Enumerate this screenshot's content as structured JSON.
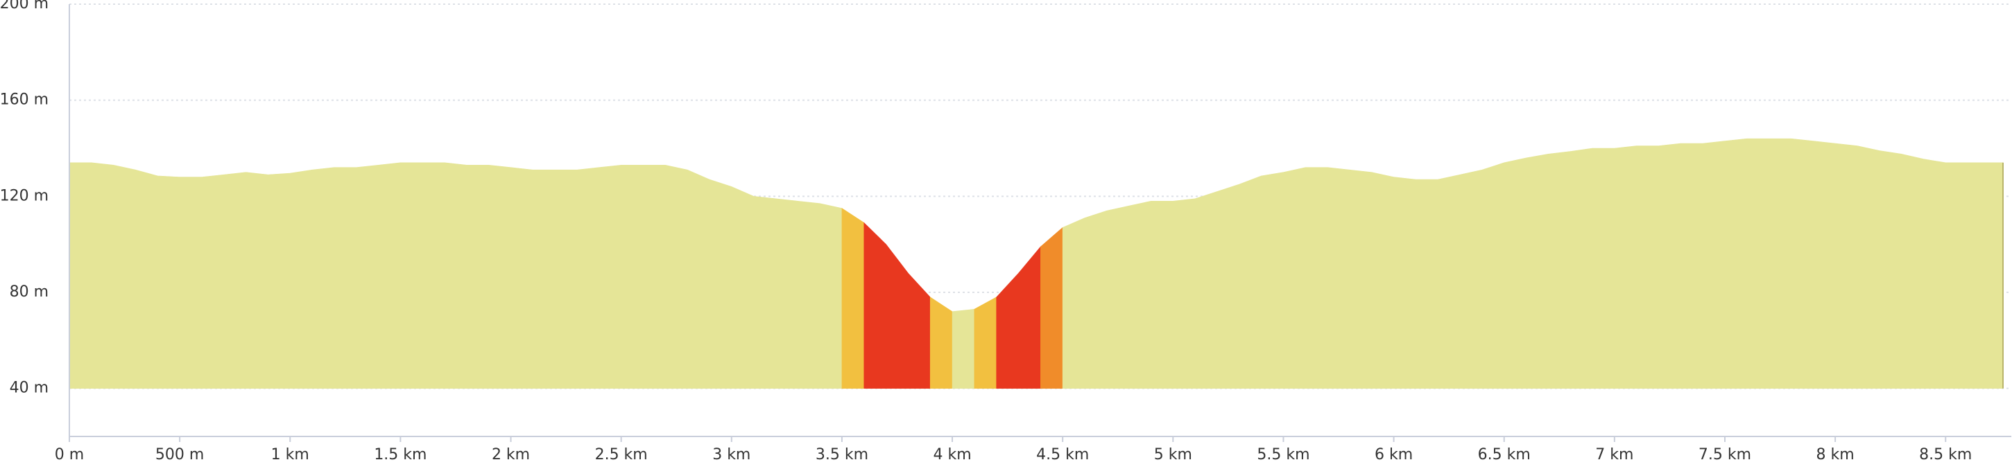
{
  "chart_data": {
    "type": "area",
    "series": [
      {
        "color": "#e5e597",
        "x": [
          0,
          100,
          200,
          300,
          400,
          500,
          600,
          700,
          800,
          900,
          1000,
          1100,
          1200,
          1300,
          1400,
          1500,
          1600,
          1700,
          1800,
          1900,
          2000,
          2100,
          2200,
          2300,
          2400,
          2500,
          2600,
          2700,
          2800,
          2900,
          3000,
          3100,
          3200,
          3300,
          3400,
          3500
        ],
        "values": [
          134,
          134,
          133,
          131,
          128.5,
          128,
          128,
          129,
          130,
          129,
          129.6,
          131,
          132,
          132,
          133,
          134,
          134,
          134,
          133,
          133,
          132,
          131,
          131,
          131,
          132,
          133,
          133,
          133,
          131,
          127,
          124,
          120,
          119,
          118,
          117,
          115
        ]
      },
      {
        "color": "#f2c040",
        "x": [
          3500,
          3600
        ],
        "values": [
          115,
          109
        ]
      },
      {
        "color": "#e8381f",
        "x": [
          3600,
          3700,
          3800,
          3900
        ],
        "values": [
          109,
          100,
          88,
          78
        ]
      },
      {
        "color": "#f2c040",
        "x": [
          3900,
          4000
        ],
        "values": [
          78,
          72
        ]
      },
      {
        "color": "#e5e597",
        "x": [
          4000,
          4100
        ],
        "values": [
          72,
          73
        ]
      },
      {
        "color": "#f2c040",
        "x": [
          4100,
          4200
        ],
        "values": [
          73,
          78
        ]
      },
      {
        "color": "#e8381f",
        "x": [
          4200,
          4300,
          4400
        ],
        "values": [
          78,
          88,
          99
        ]
      },
      {
        "color": "#f08c2a",
        "x": [
          4400,
          4500
        ],
        "values": [
          99,
          107
        ]
      },
      {
        "color": "#e5e597",
        "x": [
          4500,
          4600,
          4700,
          4800,
          4900,
          5000,
          5100,
          5200,
          5300,
          5400,
          5500,
          5600,
          5700,
          5800,
          5900,
          6000,
          6100,
          6200,
          6300,
          6400,
          6500,
          6600,
          6700,
          6800,
          6900,
          7000,
          7100,
          7200,
          7300,
          7400,
          7500,
          7600,
          7700,
          7800,
          7900,
          8000,
          8100,
          8200,
          8300,
          8400,
          8500,
          8600,
          8700,
          8760
        ],
        "values": [
          107,
          111,
          114,
          116,
          118,
          118,
          119,
          122,
          125,
          128.5,
          130,
          132,
          132,
          131,
          130,
          128,
          127,
          127,
          129,
          131,
          134,
          136,
          137.6,
          138.7,
          140,
          140,
          141,
          141,
          142,
          142,
          143,
          144,
          144,
          144,
          143,
          142,
          141,
          139,
          137.6,
          135.5,
          134,
          134,
          134,
          134
        ]
      }
    ],
    "xlim": [
      0,
      8760
    ],
    "ylim": [
      20,
      200
    ],
    "grid": true,
    "xticks": [
      {
        "value": 0,
        "label": "0 m"
      },
      {
        "value": 500,
        "label": "500 m"
      },
      {
        "value": 1000,
        "label": "1 km"
      },
      {
        "value": 1500,
        "label": "1.5 km"
      },
      {
        "value": 2000,
        "label": "2 km"
      },
      {
        "value": 2500,
        "label": "2.5 km"
      },
      {
        "value": 3000,
        "label": "3 km"
      },
      {
        "value": 3500,
        "label": "3.5 km"
      },
      {
        "value": 4000,
        "label": "4 km"
      },
      {
        "value": 4500,
        "label": "4.5 km"
      },
      {
        "value": 5000,
        "label": "5 km"
      },
      {
        "value": 5500,
        "label": "5.5 km"
      },
      {
        "value": 6000,
        "label": "6 km"
      },
      {
        "value": 6500,
        "label": "6.5 km"
      },
      {
        "value": 7000,
        "label": "7 km"
      },
      {
        "value": 7500,
        "label": "7.5 km"
      },
      {
        "value": 8000,
        "label": "8 km"
      },
      {
        "value": 8500,
        "label": "8.5 km"
      }
    ],
    "yticks": [
      {
        "value": 40,
        "label": "40 m"
      },
      {
        "value": 80,
        "label": "80 m"
      },
      {
        "value": 120,
        "label": "120 m"
      },
      {
        "value": 160,
        "label": "160 m"
      },
      {
        "value": 200,
        "label": "200 m"
      }
    ]
  }
}
